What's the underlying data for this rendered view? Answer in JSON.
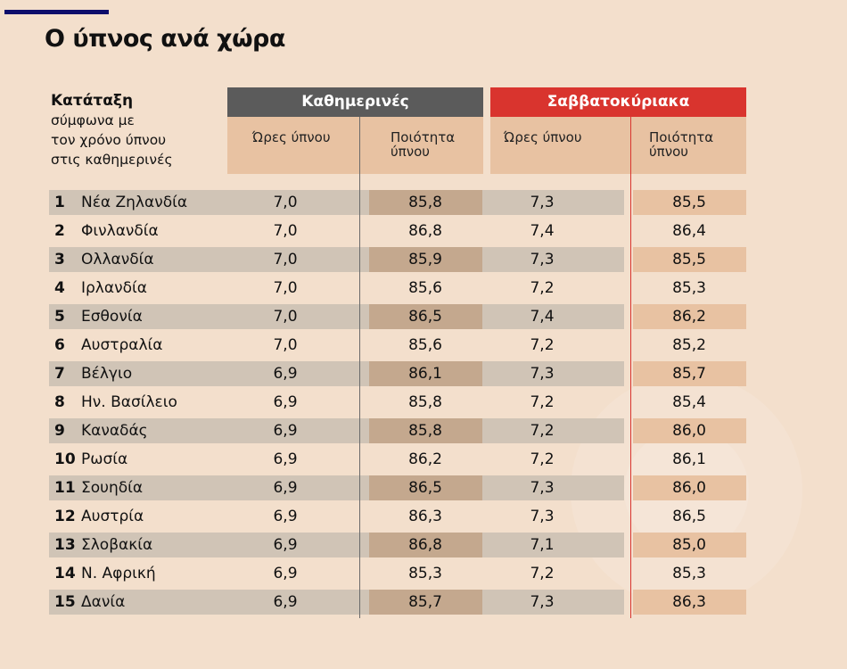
{
  "title": "Ο ύπνος ανά χώρα",
  "rank_header": {
    "bold": "Κατάταξη",
    "line1": "σύμφωνα με",
    "line2": "τον χρόνο ύπνου",
    "line3": "στις καθημερινές"
  },
  "groups": {
    "weekdays": "Καθημερινές",
    "weekend": "Σαββατοκύριακα"
  },
  "subheaders": {
    "hours": "Ώρες ύπνου",
    "quality_1": "Ποιότητα",
    "quality_2": "ύπνου"
  },
  "colors": {
    "background": "#f3dfcc",
    "weekdays_header": "#5b5b5b",
    "weekend_header": "#d9342e",
    "accent_bar": "#0d0d6b"
  },
  "chart_data": {
    "type": "table",
    "title": "Ο ύπνος ανά χώρα",
    "columns": [
      "Κατάταξη",
      "Χώρα",
      "Καθημερινές – Ώρες ύπνου",
      "Καθημερινές – Ποιότητα ύπνου",
      "Σαββατοκύριακα – Ώρες ύπνου",
      "Σαββατοκύριακα – Ποιότητα ύπνου"
    ],
    "rows": [
      [
        "1",
        "Νέα Ζηλανδία",
        "7,0",
        "85,8",
        "7,3",
        "85,5"
      ],
      [
        "2",
        "Φινλανδία",
        "7,0",
        "86,8",
        "7,4",
        "86,4"
      ],
      [
        "3",
        "Ολλανδία",
        "7,0",
        "85,9",
        "7,3",
        "85,5"
      ],
      [
        "4",
        "Ιρλανδία",
        "7,0",
        "85,6",
        "7,2",
        "85,3"
      ],
      [
        "5",
        "Εσθονία",
        "7,0",
        "86,5",
        "7,4",
        "86,2"
      ],
      [
        "6",
        "Αυστραλία",
        "7,0",
        "85,6",
        "7,2",
        "85,2"
      ],
      [
        "7",
        "Βέλγιο",
        "6,9",
        "86,1",
        "7,3",
        "85,7"
      ],
      [
        "8",
        "Ην. Βασίλειο",
        "6,9",
        "85,8",
        "7,2",
        "85,4"
      ],
      [
        "9",
        "Καναδάς",
        "6,9",
        "85,8",
        "7,2",
        "86,0"
      ],
      [
        "10",
        "Ρωσία",
        "6,9",
        "86,2",
        "7,2",
        "86,1"
      ],
      [
        "11",
        "Σουηδία",
        "6,9",
        "86,5",
        "7,3",
        "86,0"
      ],
      [
        "12",
        "Αυστρία",
        "6,9",
        "86,3",
        "7,3",
        "86,5"
      ],
      [
        "13",
        "Σλοβακία",
        "6,9",
        "86,8",
        "7,1",
        "85,0"
      ],
      [
        "14",
        "Ν. Αφρική",
        "6,9",
        "85,3",
        "7,2",
        "85,3"
      ],
      [
        "15",
        "Δανία",
        "6,9",
        "85,7",
        "7,3",
        "86,3"
      ]
    ]
  }
}
